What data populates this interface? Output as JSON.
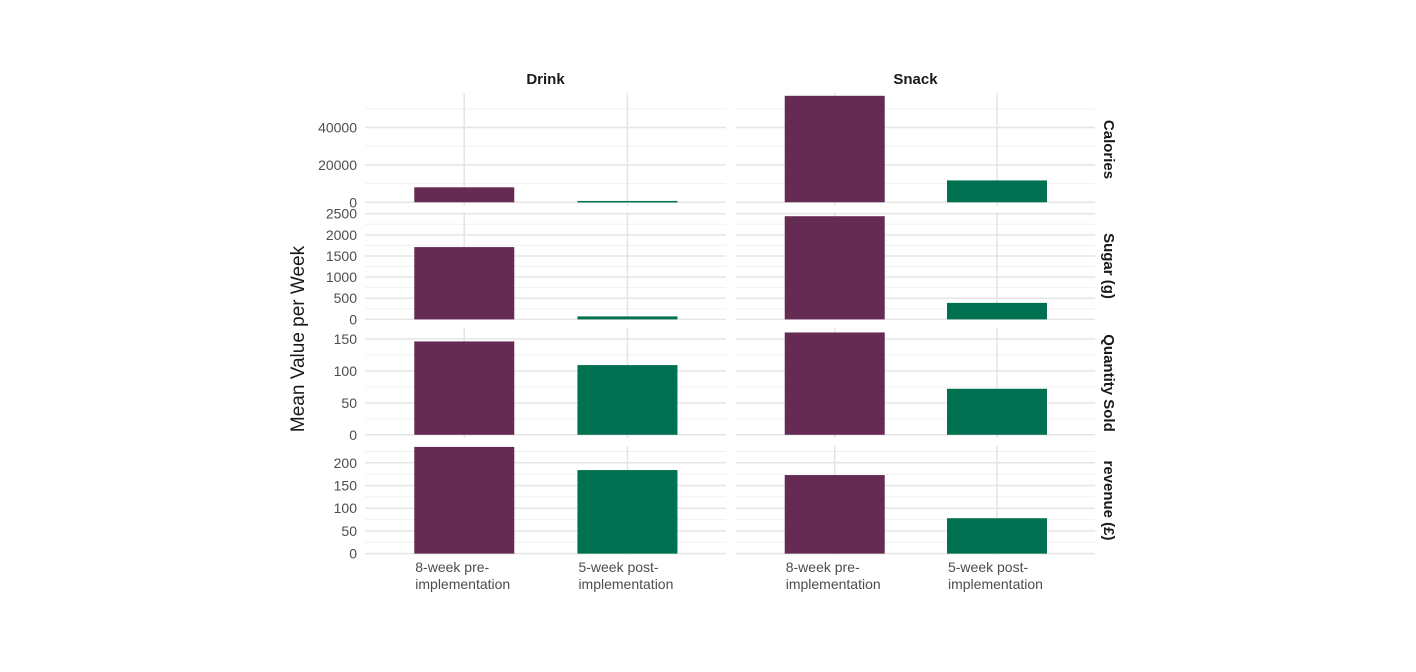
{
  "chart_data": {
    "type": "bar",
    "ylabel": "Mean Value per Week",
    "xlabel": "",
    "columns": [
      "Drink",
      "Snack"
    ],
    "rows": [
      "Calories",
      "Sugar (g)",
      "Quantity Sold",
      "revenue (£)"
    ],
    "categories": [
      "8-week pre-\nimplementation",
      "5-week post-\nimplementation"
    ],
    "colors": [
      "#652B53",
      "#007150"
    ],
    "grid": true,
    "legend": "none",
    "panels": [
      {
        "column": "Drink",
        "row": "Calories",
        "values": [
          8000,
          700
        ]
      },
      {
        "column": "Snack",
        "row": "Calories",
        "values": [
          57000,
          11700
        ]
      },
      {
        "column": "Drink",
        "row": "Sugar (g)",
        "values": [
          1710,
          70
        ]
      },
      {
        "column": "Snack",
        "row": "Sugar (g)",
        "values": [
          2440,
          390
        ]
      },
      {
        "column": "Drink",
        "row": "Quantity Sold",
        "values": [
          146,
          109
        ]
      },
      {
        "column": "Snack",
        "row": "Quantity Sold",
        "values": [
          160,
          72
        ]
      },
      {
        "column": "Drink",
        "row": "revenue (£)",
        "values": [
          235,
          184
        ]
      },
      {
        "column": "Snack",
        "row": "revenue (£)",
        "values": [
          173,
          78
        ]
      }
    ],
    "row_scales": [
      {
        "row": "Calories",
        "ylim": [
          -2000,
          58500
        ],
        "ticks": [
          0,
          20000,
          40000
        ],
        "minor_ticks": [
          10000,
          30000,
          50000
        ]
      },
      {
        "row": "Sugar (g)",
        "ylim": [
          -15,
          2540
        ],
        "ticks": [
          0,
          500,
          1000,
          1500,
          2000,
          2500
        ],
        "minor_ticks": [
          250,
          750,
          1250,
          1750,
          2250
        ]
      },
      {
        "row": "Quantity Sold",
        "ylim": [
          -5,
          167
        ],
        "ticks": [
          0,
          50,
          100,
          150
        ],
        "minor_ticks": [
          25,
          75,
          125
        ]
      },
      {
        "row": "revenue (£)",
        "ylim": [
          -3,
          237
        ],
        "ticks": [
          0,
          50,
          100,
          150,
          200
        ],
        "minor_ticks": [
          25,
          75,
          125,
          175,
          225
        ]
      }
    ]
  }
}
